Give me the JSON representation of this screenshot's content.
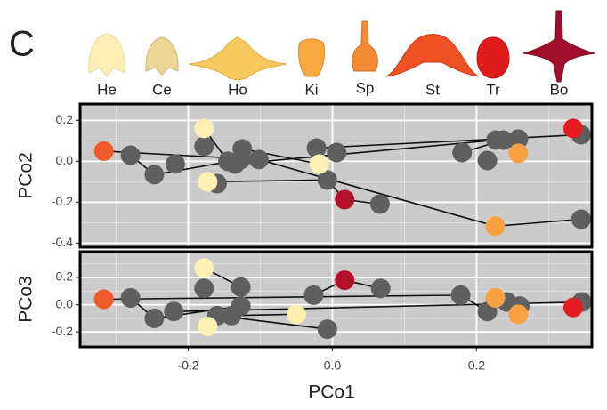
{
  "panel_label": "C",
  "morphotypes": [
    {
      "name": "He",
      "color": "#fcefb6"
    },
    {
      "name": "Ce",
      "color": "#ebd597"
    },
    {
      "name": "Ho",
      "color": "#f6c95e"
    },
    {
      "name": "Ki",
      "color": "#f9a83f"
    },
    {
      "name": "Sp",
      "color": "#f38b35"
    },
    {
      "name": "St",
      "color": "#ef5124"
    },
    {
      "name": "Tr",
      "color": "#e01b1c"
    },
    {
      "name": "Bo",
      "color": "#a10e2c"
    }
  ],
  "chart_data": [
    {
      "type": "scatter",
      "ylabel": "PCo2",
      "xlim": [
        -0.35,
        0.36
      ],
      "xticks": [
        -0.2,
        {
          "value": 0,
          "label": "0.0"
        },
        0.2
      ],
      "minor_xticks": [
        -0.3,
        -0.1,
        0.1,
        0.3
      ],
      "xtick_labels": false,
      "ylim": [
        -0.42,
        0.28
      ],
      "yticks": [
        0.2,
        {
          "value": 0,
          "label": "0.0"
        },
        -0.2,
        -0.4
      ],
      "minor_yticks": [
        0.1,
        -0.1,
        -0.3
      ],
      "grid": true,
      "segments": {
        "color": "#111111",
        "x": [
          -0.317,
          -0.102,
          null,
          -0.28,
          -0.247,
          -0.127,
          null,
          -0.178,
          -0.145,
          null,
          -0.173,
          -0.007,
          null,
          -0.125,
          -0.018,
          null,
          -0.135,
          0.227,
          null,
          -0.022,
          0.345,
          0.334,
          null,
          -0.102,
          0.226,
          0.345,
          null,
          0.017,
          0.066,
          null,
          0.18,
          0.237,
          0.258,
          null,
          -0.007,
          0.017
        ],
        "values": [
          0.05,
          0.009,
          null,
          0.03,
          -0.065,
          0.009,
          null,
          0.161,
          0.0,
          null,
          -0.1,
          -0.091,
          null,
          0.061,
          -0.013,
          null,
          -0.013,
          0.104,
          null,
          0.065,
          0.13,
          0.161,
          null,
          0.009,
          -0.317,
          -0.283,
          null,
          -0.187,
          -0.209,
          null,
          0.043,
          0.104,
          0.039,
          null,
          -0.091,
          -0.187
        ]
      },
      "series": [
        {
          "color": "#5f5f5f",
          "x": [
            -0.28,
            -0.247,
            -0.218,
            -0.178,
            -0.16,
            -0.145,
            -0.135,
            -0.125,
            -0.127,
            -0.102,
            -0.022,
            -0.007,
            0.006,
            0.066,
            0.18,
            0.215,
            0.227,
            0.237,
            0.258,
            0.345,
            0.345
          ],
          "values": [
            0.03,
            -0.065,
            -0.013,
            0.074,
            -0.109,
            0.0,
            -0.013,
            0.061,
            0.009,
            0.009,
            0.065,
            -0.091,
            0.043,
            -0.209,
            0.043,
            0.004,
            0.104,
            0.104,
            0.109,
            0.13,
            -0.283
          ]
        },
        {
          "color": "#fdf0b2",
          "x": [
            -0.178,
            -0.173,
            -0.018
          ],
          "values": [
            0.161,
            -0.1,
            -0.013
          ]
        },
        {
          "color": "#f9a040",
          "x": [
            0.258,
            0.226
          ],
          "values": [
            0.039,
            -0.317
          ]
        },
        {
          "color": "#f05a28",
          "x": [
            -0.317
          ],
          "values": [
            0.05
          ]
        },
        {
          "color": "#e51b20",
          "x": [
            0.334
          ],
          "values": [
            0.161
          ]
        },
        {
          "color": "#b5102a",
          "x": [
            0.017
          ],
          "values": [
            -0.187
          ]
        }
      ]
    },
    {
      "type": "scatter",
      "ylabel": "PCo3",
      "xlabel": "PCo1",
      "xlim": [
        -0.35,
        0.36
      ],
      "xticks": [
        -0.2,
        {
          "value": 0,
          "label": "0.0"
        },
        0.2
      ],
      "minor_xticks": [
        -0.3,
        -0.1,
        0.1,
        0.3
      ],
      "xtick_labels": true,
      "ylim": [
        -0.31,
        0.39
      ],
      "yticks": [
        0.2,
        {
          "value": 0,
          "label": "0.0"
        },
        -0.2
      ],
      "minor_yticks": [
        0.3,
        0.1,
        -0.1,
        -0.3
      ],
      "grid": true,
      "segments": {
        "color": "#111111",
        "x": [
          -0.317,
          0.178,
          null,
          -0.28,
          -0.247,
          -0.127,
          null,
          -0.178,
          -0.127,
          null,
          -0.173,
          -0.14,
          -0.05,
          null,
          -0.22,
          0.346,
          0.334,
          null,
          -0.026,
          0.017,
          0.067,
          null,
          -0.16,
          -0.007,
          null,
          0.178,
          0.215,
          0.242,
          0.26,
          null,
          0.226,
          0.258
        ],
        "values": [
          0.04,
          0.07,
          null,
          0.05,
          -0.1,
          -0.01,
          null,
          0.27,
          0.13,
          null,
          -0.16,
          -0.08,
          -0.07,
          null,
          -0.05,
          0.02,
          -0.02,
          null,
          0.07,
          0.18,
          0.12,
          null,
          -0.08,
          -0.18,
          null,
          0.07,
          -0.05,
          0.02,
          -0.01,
          null,
          0.05,
          -0.07
        ]
      },
      "series": [
        {
          "color": "#5f5f5f",
          "x": [
            -0.28,
            -0.247,
            -0.22,
            -0.178,
            -0.16,
            -0.14,
            -0.127,
            -0.127,
            -0.026,
            -0.007,
            0.067,
            0.178,
            0.215,
            0.242,
            0.26,
            0.346
          ],
          "values": [
            0.05,
            -0.1,
            -0.05,
            0.12,
            -0.08,
            -0.08,
            0.13,
            -0.01,
            0.07,
            -0.18,
            0.12,
            0.07,
            -0.05,
            0.02,
            -0.01,
            0.02
          ]
        },
        {
          "color": "#fdf0b2",
          "x": [
            -0.178,
            -0.173,
            -0.05
          ],
          "values": [
            0.27,
            -0.16,
            -0.07
          ]
        },
        {
          "color": "#f9a040",
          "x": [
            0.226,
            0.258
          ],
          "values": [
            0.05,
            -0.07
          ]
        },
        {
          "color": "#f05a28",
          "x": [
            -0.317
          ],
          "values": [
            0.04
          ]
        },
        {
          "color": "#e51b20",
          "x": [
            0.334
          ],
          "values": [
            -0.02
          ]
        },
        {
          "color": "#b5102a",
          "x": [
            0.017
          ],
          "values": [
            0.18
          ]
        }
      ]
    }
  ]
}
